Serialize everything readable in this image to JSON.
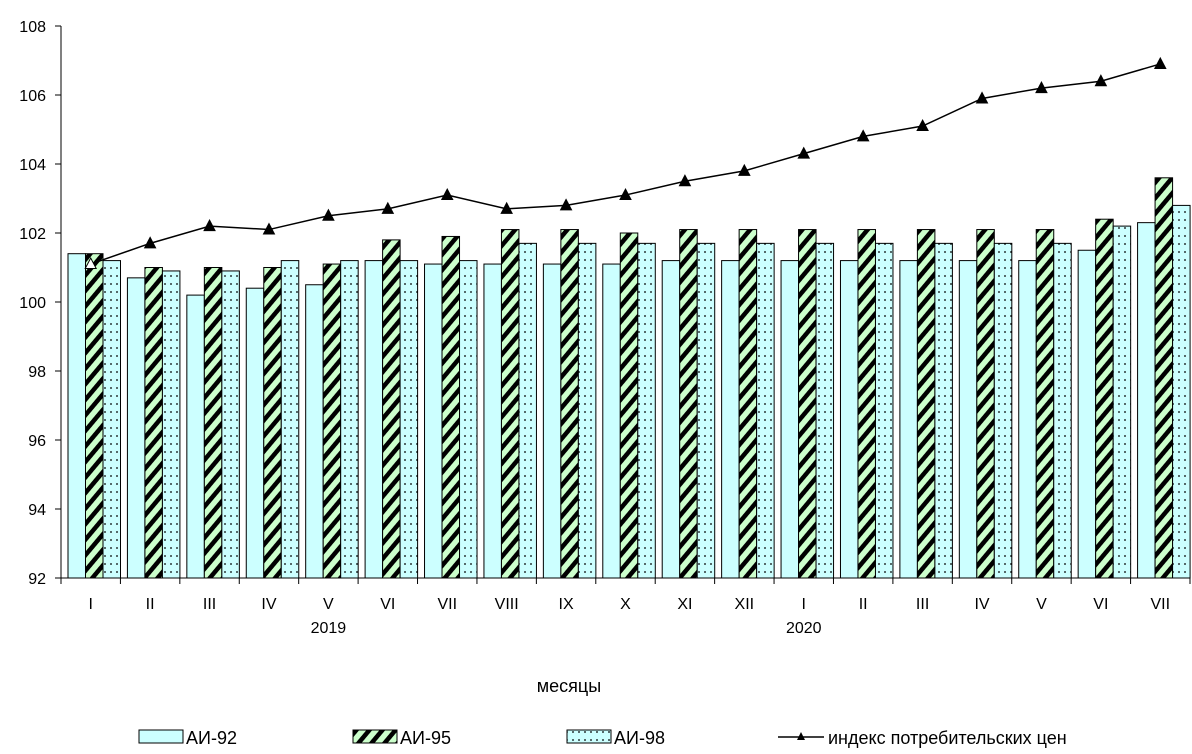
{
  "chart_data": {
    "type": "bar",
    "xlabel": "месяцы",
    "ylim": [
      92,
      108
    ],
    "yticks": [
      92,
      94,
      96,
      98,
      100,
      102,
      104,
      106,
      108
    ],
    "categories": [
      "I",
      "II",
      "III",
      "IV",
      "V",
      "VI",
      "VII",
      "VIII",
      "IX",
      "X",
      "XI",
      "XII",
      "I",
      "II",
      "III",
      "IV",
      "V",
      "VI",
      "VII"
    ],
    "year_labels": [
      {
        "text": "2019",
        "category_index": 4
      },
      {
        "text": "2020",
        "category_index": 12
      }
    ],
    "series": [
      {
        "name": "АИ-92",
        "type": "bar",
        "color": "#ccffff",
        "pattern": "solid",
        "values": [
          101.4,
          100.7,
          100.2,
          100.4,
          100.5,
          101.2,
          101.1,
          101.1,
          101.1,
          101.1,
          101.2,
          101.2,
          101.2,
          101.2,
          101.2,
          101.2,
          101.2,
          101.5,
          102.3
        ]
      },
      {
        "name": "АИ-95",
        "type": "bar",
        "color": "#ccffcc",
        "pattern": "diagonal-stripes",
        "values": [
          101.4,
          101.0,
          101.0,
          101.0,
          101.1,
          101.8,
          101.9,
          102.1,
          102.1,
          102.0,
          102.1,
          102.1,
          102.1,
          102.1,
          102.1,
          102.1,
          102.1,
          102.4,
          103.6
        ]
      },
      {
        "name": "АИ-98",
        "type": "bar",
        "color": "#ccffff",
        "pattern": "dots",
        "values": [
          101.2,
          100.9,
          100.9,
          101.2,
          101.2,
          101.2,
          101.2,
          101.7,
          101.7,
          101.7,
          101.7,
          101.7,
          101.7,
          101.7,
          101.7,
          101.7,
          101.7,
          102.2,
          102.8
        ]
      },
      {
        "name": "индекс потребительских цен",
        "type": "line",
        "color": "#000000",
        "marker": "triangle",
        "values": [
          101.1,
          101.7,
          102.2,
          102.1,
          102.5,
          102.7,
          103.1,
          102.7,
          102.8,
          103.1,
          103.5,
          103.8,
          104.3,
          104.8,
          105.1,
          105.9,
          106.2,
          106.4,
          106.9
        ]
      }
    ],
    "grid": false,
    "legend_position": "bottom"
  }
}
